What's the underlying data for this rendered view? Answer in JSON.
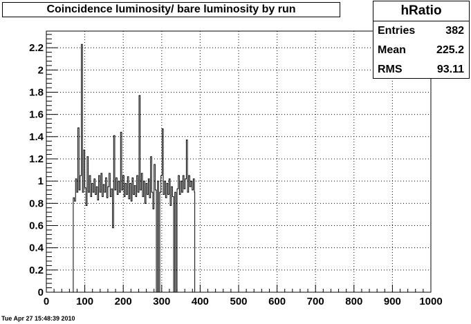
{
  "chart_data": {
    "type": "histogram",
    "title": "Coincidence luminosity/ bare luminosity by run",
    "xlabel": "",
    "ylabel": "",
    "xlim": [
      0,
      1000
    ],
    "ylim": [
      0,
      2.35
    ],
    "x_ticks": [
      "0",
      "100",
      "200",
      "300",
      "400",
      "500",
      "600",
      "700",
      "800",
      "900",
      "1000"
    ],
    "y_ticks": [
      "0",
      "0.2",
      "0.4",
      "0.6",
      "0.8",
      "1",
      "1.2",
      "1.4",
      "1.6",
      "1.8",
      "2",
      "2.2"
    ],
    "grid": true,
    "stats": {
      "name": "hRatio",
      "entries_label": "Entries",
      "entries": "382",
      "mean_label": "Mean",
      "mean": "225.2",
      "rms_label": "RMS",
      "rms": "93.11"
    },
    "series": [
      {
        "values": [
          [
            70,
            0
          ],
          [
            70,
            0.85
          ],
          [
            73,
            0.82
          ],
          [
            76,
            1.02
          ],
          [
            79,
            0.9
          ],
          [
            82,
            1.48
          ],
          [
            85,
            0.92
          ],
          [
            88,
            1.05
          ],
          [
            91,
            2.23
          ],
          [
            94,
            0.9
          ],
          [
            97,
            1.28
          ],
          [
            100,
            0.94
          ],
          [
            103,
            0.78
          ],
          [
            106,
            1.22
          ],
          [
            109,
            0.9
          ],
          [
            112,
            1.05
          ],
          [
            115,
            0.86
          ],
          [
            118,
            0.98
          ],
          [
            121,
            0.9
          ],
          [
            124,
            1.02
          ],
          [
            127,
            0.88
          ],
          [
            130,
            0.95
          ],
          [
            133,
            0.83
          ],
          [
            136,
            1.05
          ],
          [
            139,
            0.9
          ],
          [
            142,
            1.07
          ],
          [
            145,
            0.86
          ],
          [
            148,
            0.97
          ],
          [
            151,
            0.9
          ],
          [
            154,
            1.03
          ],
          [
            157,
            0.85
          ],
          [
            160,
            0.95
          ],
          [
            163,
            1.07
          ],
          [
            166,
            0.86
          ],
          [
            169,
            0.93
          ],
          [
            172,
            0.58
          ],
          [
            175,
            1.41
          ],
          [
            178,
            0.92
          ],
          [
            181,
            1.03
          ],
          [
            184,
            0.88
          ],
          [
            187,
            1.0
          ],
          [
            190,
            0.9
          ],
          [
            193,
            1.44
          ],
          [
            196,
            0.92
          ],
          [
            199,
            1.05
          ],
          [
            202,
            0.86
          ],
          [
            205,
            0.98
          ],
          [
            208,
            0.88
          ],
          [
            211,
            1.04
          ],
          [
            214,
            0.84
          ],
          [
            217,
            0.98
          ],
          [
            220,
            0.82
          ],
          [
            223,
            1.03
          ],
          [
            226,
            0.88
          ],
          [
            229,
            0.96
          ],
          [
            232,
            0.86
          ],
          [
            235,
            1.05
          ],
          [
            238,
            0.9
          ],
          [
            241,
            1.77
          ],
          [
            244,
            0.92
          ],
          [
            247,
            1.07
          ],
          [
            250,
            0.86
          ],
          [
            253,
            1.0
          ],
          [
            256,
            0.8
          ],
          [
            259,
            0.98
          ],
          [
            262,
            0.88
          ],
          [
            265,
            1.02
          ],
          [
            268,
            0.85
          ],
          [
            271,
            1.22
          ],
          [
            274,
            0.9
          ],
          [
            277,
            0.75
          ],
          [
            280,
            1.15
          ],
          [
            283,
            0.92
          ],
          [
            286,
            0
          ],
          [
            289,
            1.0
          ],
          [
            292,
            0
          ],
          [
            295,
            0.9
          ],
          [
            298,
            1.05
          ],
          [
            301,
            1.47
          ],
          [
            304,
            0.88
          ],
          [
            307,
            1.0
          ],
          [
            310,
            0.85
          ],
          [
            313,
            0.98
          ],
          [
            316,
            0.88
          ],
          [
            319,
            1.02
          ],
          [
            322,
            0.78
          ],
          [
            325,
            0.95
          ],
          [
            328,
            0.86
          ],
          [
            331,
            0
          ],
          [
            334,
            0.9
          ],
          [
            337,
            0
          ],
          [
            340,
            0.93
          ],
          [
            343,
            1.05
          ],
          [
            346,
            0.88
          ],
          [
            349,
            1.0
          ],
          [
            352,
            0.9
          ],
          [
            355,
            1.05
          ],
          [
            358,
            0.93
          ],
          [
            361,
            1.02
          ],
          [
            364,
            1.37
          ],
          [
            367,
            0.9
          ],
          [
            370,
            1.05
          ],
          [
            373,
            0.95
          ],
          [
            376,
            1.0
          ],
          [
            379,
            0.92
          ],
          [
            382,
            1.02
          ],
          [
            385,
            0.9
          ],
          [
            386,
            0
          ]
        ]
      }
    ]
  },
  "footer": {
    "timestamp": "Tue Apr 27 15:48:39 2010"
  }
}
